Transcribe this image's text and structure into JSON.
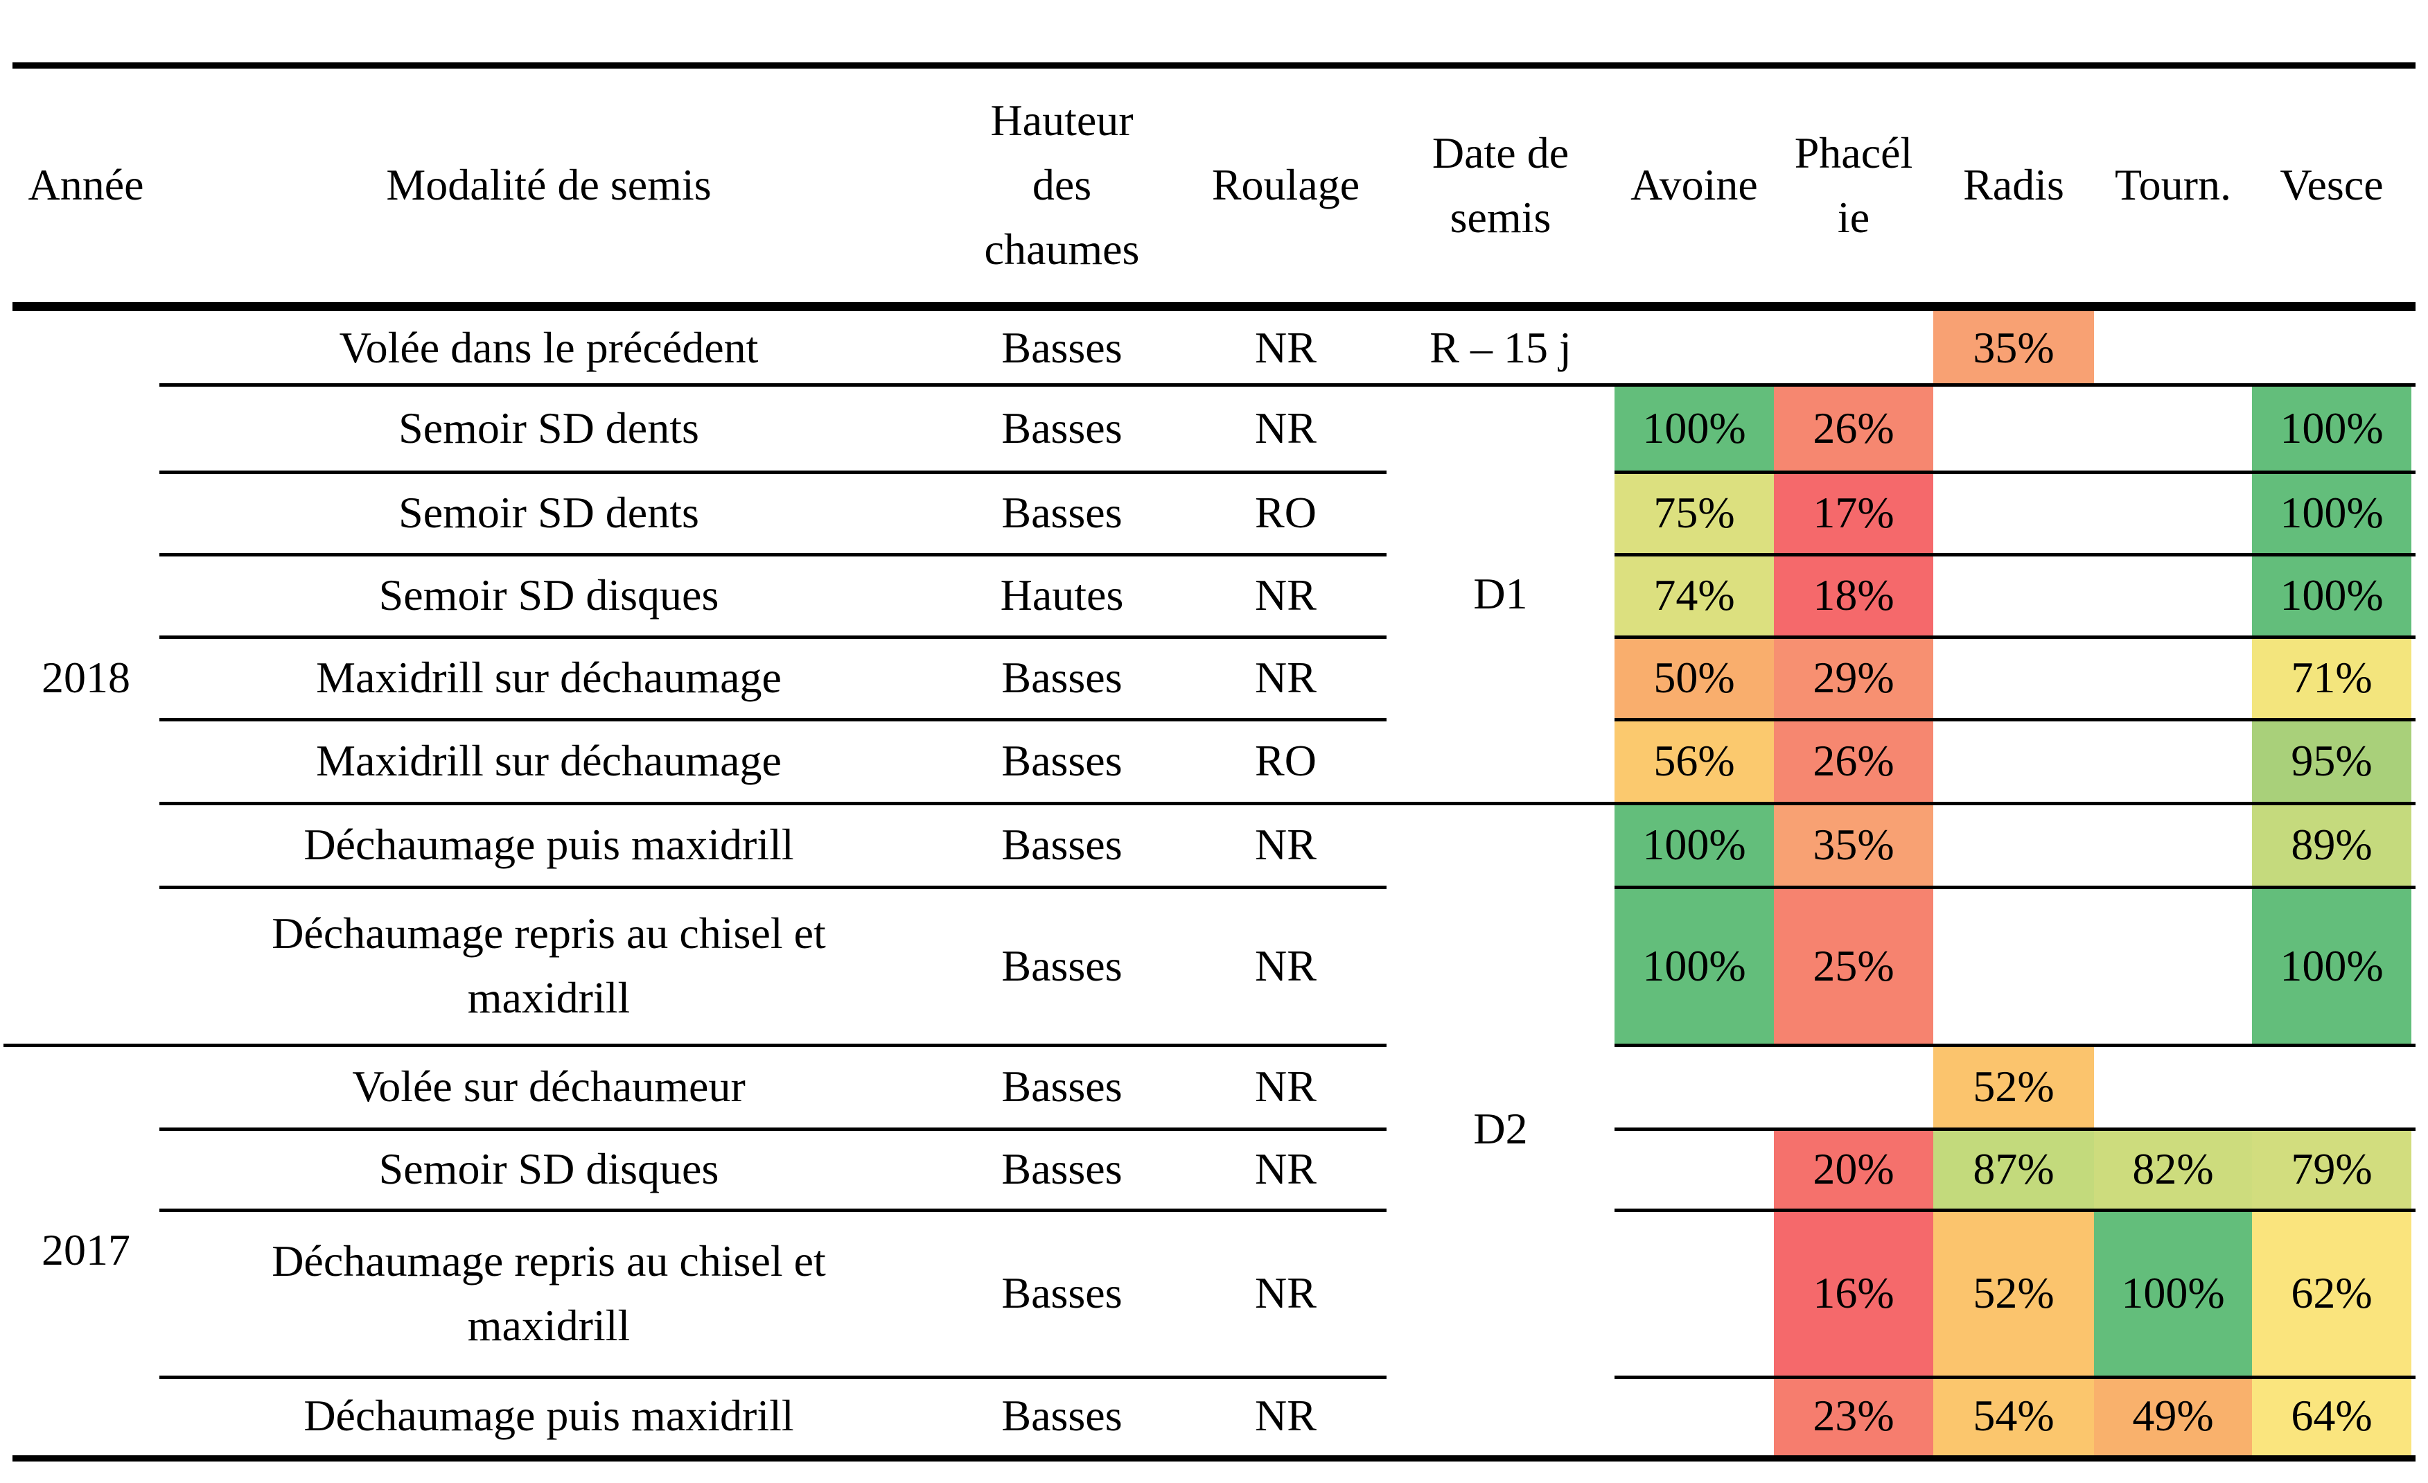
{
  "table": {
    "headers": [
      {
        "key": "annee",
        "label": "Année"
      },
      {
        "key": "modalite",
        "label": "Modalité de semis"
      },
      {
        "key": "hauteur",
        "label": "Hauteur\ndes\nchaumes"
      },
      {
        "key": "roulage",
        "label": "Roulage"
      },
      {
        "key": "date",
        "label": "Date de\nsemis"
      },
      {
        "key": "avoine",
        "label": "Avoine"
      },
      {
        "key": "phacelie",
        "label": "Phacél\nie"
      },
      {
        "key": "radis",
        "label": "Radis"
      },
      {
        "key": "tourn",
        "label": "Tourn."
      },
      {
        "key": "vesce",
        "label": "Vesce"
      }
    ],
    "year_groups": [
      {
        "label": "2018",
        "from": 0,
        "to": 7
      },
      {
        "label": "2017",
        "from": 8,
        "to": 11
      }
    ],
    "date_groups": [
      {
        "label": "R – 15 j",
        "from": 0,
        "to": 0
      },
      {
        "label": "D1",
        "from": 1,
        "to": 5
      },
      {
        "label": "D2",
        "from": 6,
        "to": 11
      }
    ],
    "rows": [
      {
        "modalite": "Volée dans le précédent",
        "hauteur": "Basses",
        "roulage": "NR",
        "cells": {
          "radis": {
            "v": "35%",
            "c": "#f8a173"
          }
        }
      },
      {
        "modalite": "Semoir SD dents",
        "hauteur": "Basses",
        "roulage": "NR",
        "cells": {
          "avoine": {
            "v": "100%",
            "c": "#63be7b"
          },
          "phacelie": {
            "v": "26%",
            "c": "#f68770"
          },
          "vesce": {
            "v": "100%",
            "c": "#63be7b"
          }
        }
      },
      {
        "modalite": "Semoir SD dents",
        "hauteur": "Basses",
        "roulage": "RO",
        "cells": {
          "avoine": {
            "v": "75%",
            "c": "#dce07f"
          },
          "phacelie": {
            "v": "17%",
            "c": "#f5696b"
          },
          "vesce": {
            "v": "100%",
            "c": "#63be7b"
          }
        }
      },
      {
        "modalite": "Semoir SD disques",
        "hauteur": "Hautes",
        "roulage": "NR",
        "cells": {
          "avoine": {
            "v": "74%",
            "c": "#dce07f"
          },
          "phacelie": {
            "v": "18%",
            "c": "#f5696b"
          },
          "vesce": {
            "v": "100%",
            "c": "#63be7b"
          }
        }
      },
      {
        "modalite": "Maxidrill sur déchaumage",
        "hauteur": "Basses",
        "roulage": "NR",
        "cells": {
          "avoine": {
            "v": "50%",
            "c": "#f9ae6d"
          },
          "phacelie": {
            "v": "29%",
            "c": "#f79071"
          },
          "vesce": {
            "v": "71%",
            "c": "#f3e57d"
          }
        }
      },
      {
        "modalite": "Maxidrill sur déchaumage",
        "hauteur": "Basses",
        "roulage": "RO",
        "cells": {
          "avoine": {
            "v": "56%",
            "c": "#fbc96e"
          },
          "phacelie": {
            "v": "26%",
            "c": "#f68770"
          },
          "vesce": {
            "v": "95%",
            "c": "#a9d07a"
          }
        }
      },
      {
        "modalite": "Déchaumage puis maxidrill",
        "hauteur": "Basses",
        "roulage": "NR",
        "cells": {
          "avoine": {
            "v": "100%",
            "c": "#63be7b"
          },
          "phacelie": {
            "v": "35%",
            "c": "#f8a173"
          },
          "vesce": {
            "v": "89%",
            "c": "#c5da7d"
          }
        }
      },
      {
        "modalite": "Déchaumage repris au chisel et maxidrill",
        "hauteur": "Basses",
        "roulage": "NR",
        "cells": {
          "avoine": {
            "v": "100%",
            "c": "#63be7b"
          },
          "phacelie": {
            "v": "25%",
            "c": "#f6836f"
          },
          "vesce": {
            "v": "100%",
            "c": "#63be7b"
          }
        }
      },
      {
        "modalite": "Volée sur déchaumeur",
        "hauteur": "Basses",
        "roulage": "NR",
        "cells": {
          "radis": {
            "v": "52%",
            "c": "#fbc46d"
          }
        }
      },
      {
        "modalite": "Semoir SD disques",
        "hauteur": "Basses",
        "roulage": "NR",
        "cells": {
          "phacelie": {
            "v": "20%",
            "c": "#f5716c"
          },
          "radis": {
            "v": "87%",
            "c": "#c3da7c"
          },
          "tourn": {
            "v": "82%",
            "c": "#cddc7d"
          },
          "vesce": {
            "v": "79%",
            "c": "#d2dd7e"
          }
        }
      },
      {
        "modalite": "Déchaumage repris au chisel et maxidrill",
        "hauteur": "Basses",
        "roulage": "NR",
        "cells": {
          "phacelie": {
            "v": "16%",
            "c": "#f5696b"
          },
          "radis": {
            "v": "52%",
            "c": "#fbc46d"
          },
          "tourn": {
            "v": "100%",
            "c": "#63be7b"
          },
          "vesce": {
            "v": "62%",
            "c": "#fae47d"
          }
        }
      },
      {
        "modalite": "Déchaumage puis maxidrill",
        "hauteur": "Basses",
        "roulage": "NR",
        "cells": {
          "phacelie": {
            "v": "23%",
            "c": "#f67d6e"
          },
          "radis": {
            "v": "54%",
            "c": "#fbc66d"
          },
          "tourn": {
            "v": "49%",
            "c": "#f9b16c"
          },
          "vesce": {
            "v": "64%",
            "c": "#fae57e"
          }
        }
      }
    ]
  },
  "chart_data": {
    "type": "table",
    "columns": [
      "Année",
      "Modalité de semis",
      "Hauteur des chaumes",
      "Roulage",
      "Date de semis",
      "Avoine",
      "Phacélie",
      "Radis",
      "Tourn.",
      "Vesce"
    ],
    "unit": "%",
    "rows": [
      [
        "2018",
        "Volée dans le précédent",
        "Basses",
        "NR",
        "R – 15 j",
        null,
        null,
        35,
        null,
        null
      ],
      [
        "2018",
        "Semoir SD dents",
        "Basses",
        "NR",
        "D1",
        100,
        26,
        null,
        null,
        100
      ],
      [
        "2018",
        "Semoir SD dents",
        "Basses",
        "RO",
        "D1",
        75,
        17,
        null,
        null,
        100
      ],
      [
        "2018",
        "Semoir SD disques",
        "Hautes",
        "NR",
        "D1",
        74,
        18,
        null,
        null,
        100
      ],
      [
        "2018",
        "Maxidrill sur déchaumage",
        "Basses",
        "NR",
        "D1",
        50,
        29,
        null,
        null,
        71
      ],
      [
        "2018",
        "Maxidrill sur déchaumage",
        "Basses",
        "RO",
        "D1",
        56,
        26,
        null,
        null,
        95
      ],
      [
        "2018",
        "Déchaumage puis maxidrill",
        "Basses",
        "NR",
        "D2",
        100,
        35,
        null,
        null,
        89
      ],
      [
        "2018",
        "Déchaumage repris au chisel et maxidrill",
        "Basses",
        "NR",
        "D2",
        100,
        25,
        null,
        null,
        100
      ],
      [
        "2017",
        "Volée sur déchaumeur",
        "Basses",
        "NR",
        "D2",
        null,
        null,
        52,
        null,
        null
      ],
      [
        "2017",
        "Semoir SD disques",
        "Basses",
        "NR",
        "D2",
        null,
        20,
        87,
        82,
        79
      ],
      [
        "2017",
        "Déchaumage repris au chisel et maxidrill",
        "Basses",
        "NR",
        "D2",
        null,
        16,
        52,
        100,
        62
      ],
      [
        "2017",
        "Déchaumage puis maxidrill",
        "Basses",
        "NR",
        "D2",
        null,
        23,
        54,
        49,
        64
      ]
    ],
    "color_scale": {
      "type": "red-yellow-green",
      "min_color": "#f5696b",
      "mid_color": "#fae57e",
      "max_color": "#63be7b"
    },
    "layout": {
      "grid": "horizontal rules only; merged cells for Année (2018, 2017) and Date de semis (R – 15 j, D1, D2)",
      "legend": "none"
    }
  }
}
